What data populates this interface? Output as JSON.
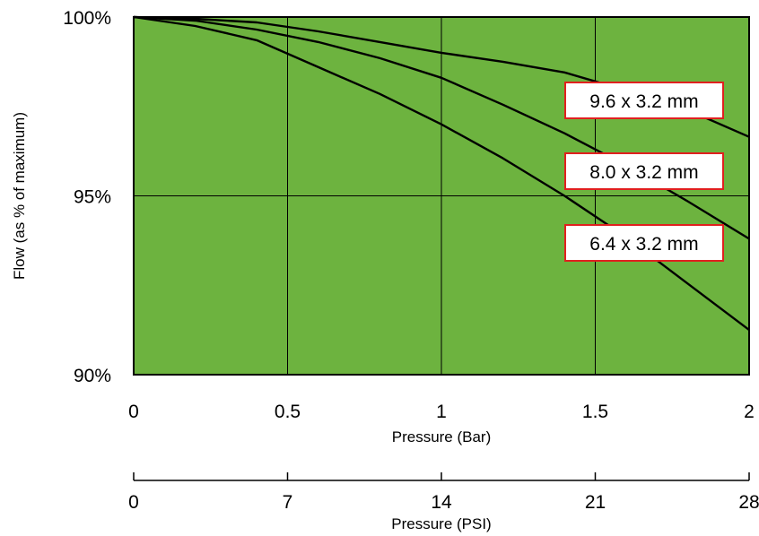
{
  "chart_data": {
    "type": "line",
    "background_color": "#6db33f",
    "series_color": "#000000",
    "label_border_color": "#e0201f",
    "grid": true,
    "xlabel": "Pressure (Bar)",
    "ylabel": "Flow (as % of maximum)",
    "xlim": [
      0,
      2
    ],
    "ylim": [
      90,
      100
    ],
    "x_ticks": [
      0,
      0.5,
      1,
      1.5,
      2
    ],
    "x_tick_labels": [
      "0",
      "0.5",
      "1",
      "1.5",
      "2"
    ],
    "y_ticks": [
      90,
      95,
      100
    ],
    "y_tick_labels": [
      "90%",
      "95%",
      "100%"
    ],
    "secondary_x_axis": {
      "label": "Pressure (PSI)",
      "lim": [
        0,
        28
      ],
      "ticks": [
        0,
        7,
        14,
        21,
        28
      ],
      "tick_labels": [
        "0",
        "7",
        "14",
        "21",
        "28"
      ]
    },
    "series": [
      {
        "name": "9.6 x 3.2 mm",
        "x": [
          0,
          0.2,
          0.4,
          0.6,
          0.8,
          1.0,
          1.2,
          1.4,
          1.6,
          1.8,
          2.0
        ],
        "y": [
          100,
          99.95,
          99.85,
          99.6,
          99.3,
          99.0,
          98.75,
          98.45,
          97.95,
          97.4,
          96.65
        ]
      },
      {
        "name": "8.0 x 3.2 mm",
        "x": [
          0,
          0.2,
          0.4,
          0.6,
          0.8,
          1.0,
          1.2,
          1.4,
          1.6,
          1.8,
          2.0
        ],
        "y": [
          100,
          99.9,
          99.65,
          99.3,
          98.85,
          98.3,
          97.55,
          96.75,
          95.85,
          94.85,
          93.8
        ]
      },
      {
        "name": "6.4 x 3.2 mm",
        "x": [
          0,
          0.2,
          0.4,
          0.6,
          0.8,
          1.0,
          1.2,
          1.4,
          1.6,
          1.8,
          2.0
        ],
        "y": [
          100,
          99.75,
          99.35,
          98.6,
          97.85,
          97.0,
          96.05,
          95.0,
          93.85,
          92.55,
          91.25
        ]
      }
    ]
  }
}
